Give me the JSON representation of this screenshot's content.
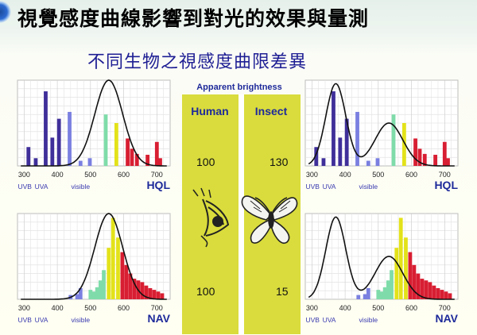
{
  "slide": {
    "title": "視覺感度曲線影響到對光的效果與量測",
    "subtitle": "不同生物之視感度曲限差異"
  },
  "middle_panel": {
    "header": "Apparent brightness",
    "col_left": "Human",
    "col_right": "Insect",
    "hql_human": "100",
    "hql_insect": "130",
    "nav_human": "100",
    "nav_insect": "15"
  },
  "colors": {
    "panel_yellow": "#d9dc3c",
    "curve": "#111111",
    "violet": "#3f2f9a",
    "blue": "#7a7fe0",
    "green": "#7fdcaa",
    "yellow": "#e3e21a",
    "red": "#d81e32"
  },
  "chart_data": [
    {
      "type": "bar",
      "title": "",
      "xlabel": "",
      "ylabel": "",
      "label": "HQL",
      "curve": "Human",
      "xlim": [
        280,
        740
      ],
      "xticks": [
        "300",
        "400",
        "500",
        "600",
        "700"
      ],
      "band_labels": [
        "UVB",
        "UVA",
        "visible"
      ],
      "bars": [
        {
          "x": 313,
          "v": 0.22,
          "c": "violet"
        },
        {
          "x": 335,
          "v": 0.09,
          "c": "violet"
        },
        {
          "x": 365,
          "v": 0.87,
          "c": "violet"
        },
        {
          "x": 385,
          "v": 0.33,
          "c": "violet"
        },
        {
          "x": 405,
          "v": 0.55,
          "c": "violet"
        },
        {
          "x": 437,
          "v": 0.63,
          "c": "blue"
        },
        {
          "x": 470,
          "v": 0.06,
          "c": "blue"
        },
        {
          "x": 498,
          "v": 0.09,
          "c": "blue"
        },
        {
          "x": 546,
          "v": 0.6,
          "c": "green"
        },
        {
          "x": 578,
          "v": 0.5,
          "c": "yellow"
        },
        {
          "x": 612,
          "v": 0.32,
          "c": "red"
        },
        {
          "x": 625,
          "v": 0.2,
          "c": "red"
        },
        {
          "x": 640,
          "v": 0.14,
          "c": "red"
        },
        {
          "x": 672,
          "v": 0.13,
          "c": "red"
        },
        {
          "x": 700,
          "v": 0.28,
          "c": "red"
        },
        {
          "x": 710,
          "v": 0.09,
          "c": "red"
        }
      ]
    },
    {
      "type": "bar",
      "title": "",
      "xlabel": "",
      "ylabel": "",
      "label": "HQL",
      "curve": "Insect",
      "xlim": [
        280,
        740
      ],
      "xticks": [
        "300",
        "400",
        "500",
        "600",
        "700"
      ],
      "band_labels": [
        "UVB",
        "UVA",
        "visible"
      ],
      "bars": [
        {
          "x": 313,
          "v": 0.22,
          "c": "violet"
        },
        {
          "x": 335,
          "v": 0.09,
          "c": "violet"
        },
        {
          "x": 365,
          "v": 0.87,
          "c": "violet"
        },
        {
          "x": 385,
          "v": 0.33,
          "c": "violet"
        },
        {
          "x": 405,
          "v": 0.55,
          "c": "violet"
        },
        {
          "x": 437,
          "v": 0.63,
          "c": "blue"
        },
        {
          "x": 470,
          "v": 0.06,
          "c": "blue"
        },
        {
          "x": 498,
          "v": 0.09,
          "c": "blue"
        },
        {
          "x": 546,
          "v": 0.6,
          "c": "green"
        },
        {
          "x": 578,
          "v": 0.5,
          "c": "yellow"
        },
        {
          "x": 612,
          "v": 0.32,
          "c": "red"
        },
        {
          "x": 625,
          "v": 0.2,
          "c": "red"
        },
        {
          "x": 640,
          "v": 0.14,
          "c": "red"
        },
        {
          "x": 672,
          "v": 0.13,
          "c": "red"
        },
        {
          "x": 700,
          "v": 0.28,
          "c": "red"
        },
        {
          "x": 710,
          "v": 0.09,
          "c": "red"
        }
      ]
    },
    {
      "type": "bar",
      "title": "",
      "xlabel": "",
      "ylabel": "",
      "label": "NAV",
      "curve": "Human",
      "xlim": [
        280,
        740
      ],
      "xticks": [
        "300",
        "400",
        "500",
        "600",
        "700"
      ],
      "band_labels": [
        "UVB",
        "UVA",
        "visible"
      ],
      "bars": [
        {
          "x": 440,
          "v": 0.05,
          "c": "blue"
        },
        {
          "x": 460,
          "v": 0.06,
          "c": "blue"
        },
        {
          "x": 470,
          "v": 0.13,
          "c": "blue"
        },
        {
          "x": 500,
          "v": 0.11,
          "c": "green"
        },
        {
          "x": 510,
          "v": 0.09,
          "c": "green"
        },
        {
          "x": 520,
          "v": 0.14,
          "c": "green"
        },
        {
          "x": 530,
          "v": 0.22,
          "c": "green"
        },
        {
          "x": 540,
          "v": 0.34,
          "c": "green"
        },
        {
          "x": 555,
          "v": 0.6,
          "c": "yellow"
        },
        {
          "x": 568,
          "v": 0.95,
          "c": "yellow"
        },
        {
          "x": 583,
          "v": 0.72,
          "c": "yellow"
        },
        {
          "x": 596,
          "v": 0.55,
          "c": "red"
        },
        {
          "x": 608,
          "v": 0.4,
          "c": "red"
        },
        {
          "x": 620,
          "v": 0.3,
          "c": "red"
        },
        {
          "x": 632,
          "v": 0.24,
          "c": "red"
        },
        {
          "x": 644,
          "v": 0.22,
          "c": "red"
        },
        {
          "x": 656,
          "v": 0.2,
          "c": "red"
        },
        {
          "x": 668,
          "v": 0.16,
          "c": "red"
        },
        {
          "x": 680,
          "v": 0.13,
          "c": "red"
        },
        {
          "x": 692,
          "v": 0.11,
          "c": "red"
        },
        {
          "x": 704,
          "v": 0.09,
          "c": "red"
        },
        {
          "x": 716,
          "v": 0.07,
          "c": "red"
        }
      ]
    },
    {
      "type": "bar",
      "title": "",
      "xlabel": "",
      "ylabel": "",
      "label": "NAV",
      "curve": "Insect",
      "xlim": [
        280,
        740
      ],
      "xticks": [
        "300",
        "400",
        "500",
        "600",
        "700"
      ],
      "band_labels": [
        "UVB",
        "UVA",
        "visible"
      ],
      "bars": [
        {
          "x": 440,
          "v": 0.05,
          "c": "blue"
        },
        {
          "x": 460,
          "v": 0.06,
          "c": "blue"
        },
        {
          "x": 470,
          "v": 0.13,
          "c": "blue"
        },
        {
          "x": 500,
          "v": 0.11,
          "c": "green"
        },
        {
          "x": 510,
          "v": 0.09,
          "c": "green"
        },
        {
          "x": 520,
          "v": 0.14,
          "c": "green"
        },
        {
          "x": 530,
          "v": 0.22,
          "c": "green"
        },
        {
          "x": 540,
          "v": 0.34,
          "c": "green"
        },
        {
          "x": 555,
          "v": 0.6,
          "c": "yellow"
        },
        {
          "x": 568,
          "v": 0.95,
          "c": "yellow"
        },
        {
          "x": 583,
          "v": 0.72,
          "c": "yellow"
        },
        {
          "x": 596,
          "v": 0.55,
          "c": "red"
        },
        {
          "x": 608,
          "v": 0.4,
          "c": "red"
        },
        {
          "x": 620,
          "v": 0.3,
          "c": "red"
        },
        {
          "x": 632,
          "v": 0.24,
          "c": "red"
        },
        {
          "x": 644,
          "v": 0.22,
          "c": "red"
        },
        {
          "x": 656,
          "v": 0.2,
          "c": "red"
        },
        {
          "x": 668,
          "v": 0.16,
          "c": "red"
        },
        {
          "x": 680,
          "v": 0.13,
          "c": "red"
        },
        {
          "x": 692,
          "v": 0.11,
          "c": "red"
        },
        {
          "x": 704,
          "v": 0.09,
          "c": "red"
        },
        {
          "x": 716,
          "v": 0.07,
          "c": "red"
        }
      ]
    }
  ]
}
